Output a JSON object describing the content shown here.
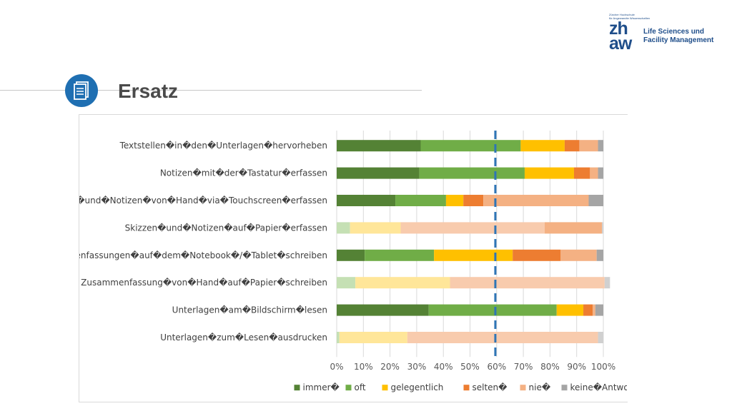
{
  "header": {
    "title": "Ersatz",
    "icon": "document-icon",
    "accent_color": "#1f6fb2"
  },
  "logo": {
    "small_text": [
      "Zürcher Hochschule",
      "für Angewandte Wissenschaften"
    ],
    "mark": [
      "zh",
      "aw"
    ],
    "unit": [
      "Life Sciences und",
      "Facility Management"
    ],
    "color": "#1f4e8a"
  },
  "chart_data": {
    "type": "bar",
    "orientation": "horizontal",
    "stacked": "percent",
    "categories": [
      "Textstellen in den Unterlagen hervorheben",
      "Notizen mit der Tastatur erfassen",
      "Skizzen und Notizen von Hand via Touchscreen erfassen",
      "Skizzen und Notizen auf Papier erfassen",
      "Zusammenfassungen auf dem Notebook / Tablet schreiben",
      "Zusammenfassung von Hand auf Papier schreiben",
      "Unterlagen am Bildschirm lesen",
      "Unterlagen zum Lesen ausdrucken"
    ],
    "category_labels": [
      "Textstellen�in�den�Unterlagen�hervorheben",
      "Notizen�mit�der�Tastatur�erfassen",
      "Skizzen�und�Notizen�von�Hand�via�Touchscreen�erfassen",
      "Skizzen�und�Notizen�auf�Papier�erfassen",
      "Zusammenfassungen�auf�dem�Notebook�/�Tablet�schreiben",
      "Zusammenfassung�von�Hand�auf�Papier�schreiben",
      "Unterlagen�am�Bildschirm�lesen",
      "Unterlagen�zum�Lesen�ausdrucken"
    ],
    "series": [
      {
        "name": "immer",
        "label": "immer�",
        "color": "#548235",
        "values": [
          31.5,
          31,
          22,
          0,
          10.5,
          0,
          34.5,
          0
        ]
      },
      {
        "name": "oft",
        "label": "oft",
        "color": "#70ad47",
        "values": [
          37.5,
          39.5,
          19,
          5,
          26,
          7,
          48,
          1
        ]
      },
      {
        "name": "gelegentlich",
        "label": "gelegentlich",
        "color": "#ffc000",
        "values": [
          16.5,
          18.5,
          6.5,
          19,
          29.5,
          35.5,
          10,
          25.5
        ]
      },
      {
        "name": "selten",
        "label": "selten�",
        "color": "#ed7d31",
        "values": [
          5.5,
          6,
          7.5,
          54,
          18,
          58,
          3.5,
          71.5
        ]
      },
      {
        "name": "nie",
        "label": "nie�",
        "color": "#f4b183",
        "values": [
          7,
          3,
          39.5,
          21.5,
          13.5,
          0,
          1,
          0
        ]
      },
      {
        "name": "keine Antwort",
        "label": "keine�Antwort",
        "color": "#a5a5a5",
        "values": [
          2,
          2,
          5.5,
          0.5,
          2.5,
          2,
          3,
          2
        ]
      }
    ],
    "light_rows": [
      3,
      5,
      7
    ],
    "light_colors": [
      "#9fd08a",
      "#c5e0b4",
      "#ffe699",
      "#f8cbad",
      "#f4b183",
      "#d0d0d0"
    ],
    "x_ticks": [
      "0%",
      "10%",
      "20%",
      "30%",
      "40%",
      "50%",
      "60%",
      "70%",
      "80%",
      "90%",
      "100%"
    ],
    "xlim": [
      0,
      100
    ],
    "reference_line": {
      "value": 59.5,
      "color": "#2e75b6",
      "style": "dashed"
    },
    "grid": true,
    "legend_position": "bottom",
    "title": "",
    "xlabel": "",
    "ylabel": ""
  }
}
